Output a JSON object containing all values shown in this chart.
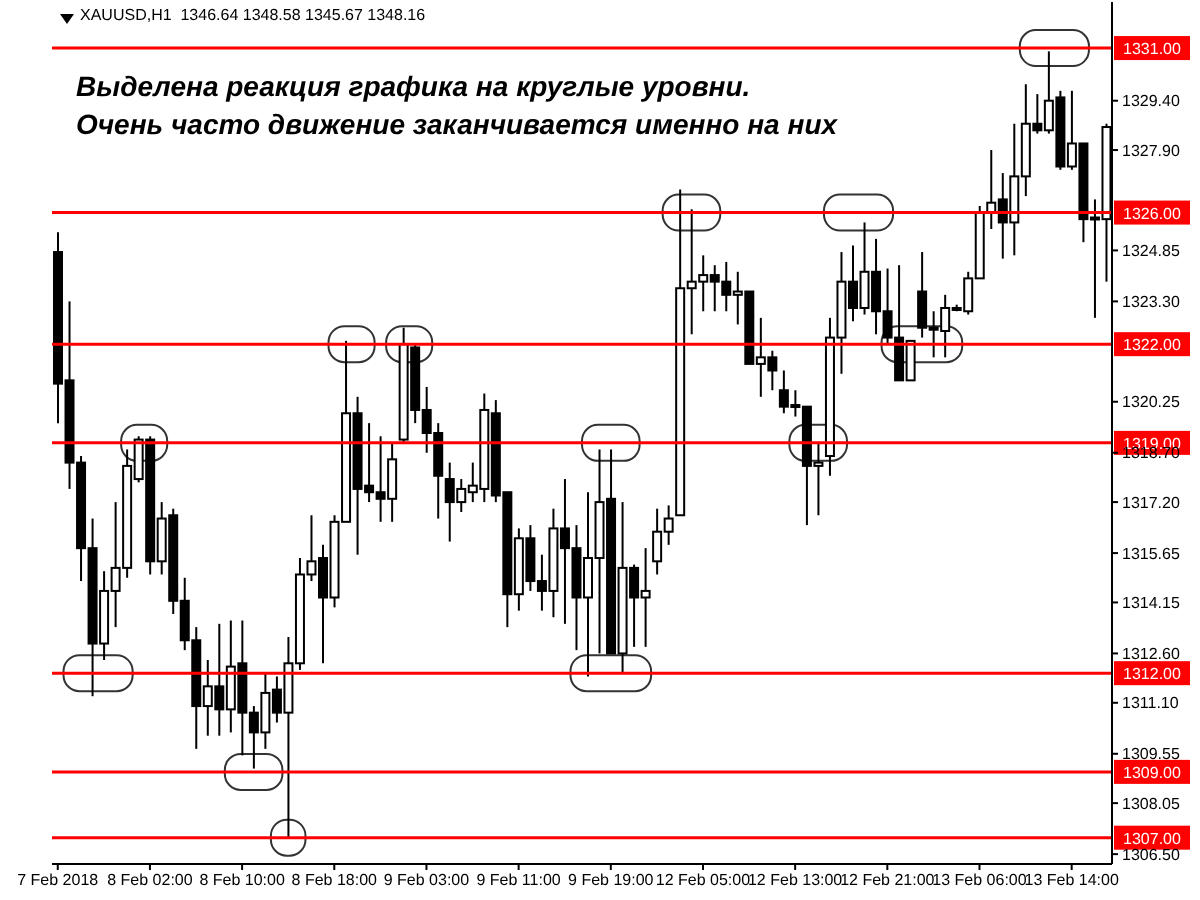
{
  "chart_data": {
    "type": "candlestick",
    "title": "XAUUSD,H1  1346.64 1348.58 1345.67 1348.16",
    "annotations": [
      "Выделена реакция графика на круглые уровни.",
      "Очень часто движение заканчивается именно на них"
    ],
    "categories": [
      "7 Feb 2018",
      null,
      null,
      null,
      null,
      null,
      null,
      null,
      "8 Feb 02:00",
      null,
      null,
      null,
      null,
      null,
      null,
      null,
      "8 Feb 10:00",
      null,
      null,
      null,
      null,
      null,
      null,
      null,
      "8 Feb 18:00",
      null,
      null,
      null,
      null,
      null,
      null,
      null,
      "9 Feb 03:00",
      null,
      null,
      null,
      null,
      null,
      null,
      null,
      "9 Feb 11:00",
      null,
      null,
      null,
      null,
      null,
      null,
      null,
      "9 Feb 19:00",
      null,
      null,
      null,
      null,
      null,
      null,
      null,
      "12 Feb 05:00",
      null,
      null,
      null,
      null,
      null,
      null,
      null,
      "12 Feb 13:00",
      null,
      null,
      null,
      null,
      null,
      null,
      null,
      "12 Feb 21:00",
      null,
      null,
      null,
      null,
      null,
      null,
      null,
      "13 Feb 06:00",
      null,
      null,
      null,
      null,
      null,
      null,
      null,
      "13 Feb 14:00",
      null,
      null,
      null
    ],
    "ohlc": [
      [
        1324.8,
        1325.4,
        1319.6,
        1320.8
      ],
      [
        1320.9,
        1323.3,
        1317.6,
        1318.4
      ],
      [
        1318.4,
        1318.6,
        1314.8,
        1315.8
      ],
      [
        1315.8,
        1316.7,
        1311.3,
        1312.9
      ],
      [
        1312.9,
        1315.1,
        1312.4,
        1314.5
      ],
      [
        1314.5,
        1317.2,
        1313.4,
        1315.2
      ],
      [
        1315.2,
        1318.8,
        1314.9,
        1318.3
      ],
      [
        1317.9,
        1319.2,
        1317.8,
        1319.1
      ],
      [
        1319.1,
        1319.2,
        1315.0,
        1315.4
      ],
      [
        1315.4,
        1317.2,
        1315.0,
        1316.7
      ],
      [
        1316.8,
        1317.0,
        1313.8,
        1314.2
      ],
      [
        1314.2,
        1314.9,
        1312.7,
        1313.0
      ],
      [
        1313.0,
        1313.4,
        1309.7,
        1311.0
      ],
      [
        1311.0,
        1312.4,
        1310.1,
        1311.6
      ],
      [
        1311.6,
        1313.5,
        1310.1,
        1310.9
      ],
      [
        1310.9,
        1313.6,
        1310.2,
        1312.2
      ],
      [
        1312.3,
        1313.6,
        1309.5,
        1310.8
      ],
      [
        1310.8,
        1311.0,
        1309.1,
        1310.2
      ],
      [
        1310.2,
        1312.0,
        1309.7,
        1311.4
      ],
      [
        1311.5,
        1311.9,
        1310.5,
        1310.8
      ],
      [
        1310.8,
        1313.1,
        1307.0,
        1312.3
      ],
      [
        1312.3,
        1315.5,
        1312.1,
        1315.0
      ],
      [
        1315.0,
        1316.8,
        1314.8,
        1315.4
      ],
      [
        1315.5,
        1315.9,
        1312.3,
        1314.3
      ],
      [
        1314.3,
        1316.8,
        1314.0,
        1316.6
      ],
      [
        1316.6,
        1322.1,
        1316.6,
        1319.9
      ],
      [
        1319.9,
        1320.4,
        1315.6,
        1317.6
      ],
      [
        1317.7,
        1319.6,
        1317.2,
        1317.5
      ],
      [
        1317.5,
        1319.2,
        1316.6,
        1317.3
      ],
      [
        1317.3,
        1319.0,
        1316.6,
        1318.5
      ],
      [
        1319.1,
        1322.5,
        1319.0,
        1322.0
      ],
      [
        1321.9,
        1322.0,
        1319.6,
        1320.0
      ],
      [
        1320.0,
        1320.7,
        1318.7,
        1319.3
      ],
      [
        1319.3,
        1319.6,
        1316.7,
        1318.0
      ],
      [
        1317.9,
        1318.4,
        1316.0,
        1317.2
      ],
      [
        1317.2,
        1317.9,
        1316.9,
        1317.6
      ],
      [
        1317.5,
        1318.4,
        1317.2,
        1317.7
      ],
      [
        1317.6,
        1320.5,
        1317.2,
        1320.0
      ],
      [
        1319.9,
        1320.3,
        1317.2,
        1317.4
      ],
      [
        1317.5,
        1317.5,
        1313.4,
        1314.4
      ],
      [
        1314.4,
        1316.4,
        1313.9,
        1316.1
      ],
      [
        1316.1,
        1316.5,
        1314.5,
        1314.8
      ],
      [
        1314.8,
        1315.6,
        1313.9,
        1314.5
      ],
      [
        1314.5,
        1317.0,
        1313.7,
        1316.4
      ],
      [
        1316.4,
        1317.9,
        1313.5,
        1315.8
      ],
      [
        1315.8,
        1316.5,
        1312.7,
        1314.3
      ],
      [
        1314.3,
        1317.5,
        1311.9,
        1315.5
      ],
      [
        1315.5,
        1318.8,
        1312.6,
        1317.2
      ],
      [
        1317.3,
        1318.8,
        1312.6,
        1312.6
      ],
      [
        1312.6,
        1317.2,
        1312.0,
        1315.2
      ],
      [
        1315.2,
        1315.3,
        1312.8,
        1314.3
      ],
      [
        1314.3,
        1315.8,
        1312.8,
        1314.5
      ],
      [
        1315.4,
        1317.0,
        1315.0,
        1316.3
      ],
      [
        1316.3,
        1317.1,
        1315.9,
        1316.7
      ],
      [
        1316.8,
        1326.7,
        1316.8,
        1323.7
      ],
      [
        1323.7,
        1326.1,
        1322.3,
        1323.9
      ],
      [
        1323.9,
        1324.7,
        1323.0,
        1324.1
      ],
      [
        1324.1,
        1324.4,
        1323.0,
        1323.9
      ],
      [
        1323.9,
        1324.5,
        1323.0,
        1323.5
      ],
      [
        1323.5,
        1324.2,
        1322.6,
        1323.6
      ],
      [
        1323.6,
        1323.6,
        1321.4,
        1321.4
      ],
      [
        1321.4,
        1322.8,
        1320.4,
        1321.6
      ],
      [
        1321.6,
        1321.8,
        1320.6,
        1321.2
      ],
      [
        1320.6,
        1321.2,
        1319.9,
        1320.1
      ],
      [
        1320.15,
        1320.6,
        1319.8,
        1320.1
      ],
      [
        1320.1,
        1320.1,
        1316.5,
        1318.3
      ],
      [
        1318.3,
        1319.0,
        1316.8,
        1318.4
      ],
      [
        1318.6,
        1322.8,
        1318.0,
        1322.2
      ],
      [
        1322.2,
        1324.8,
        1321.1,
        1323.9
      ],
      [
        1323.9,
        1325.0,
        1322.7,
        1323.1
      ],
      [
        1323.1,
        1325.7,
        1322.9,
        1324.2
      ],
      [
        1324.2,
        1325.2,
        1322.3,
        1323.0
      ],
      [
        1323.0,
        1324.3,
        1322.0,
        1322.2
      ],
      [
        1322.2,
        1324.4,
        1320.9,
        1320.9
      ],
      [
        1320.9,
        1322.1,
        1320.9,
        1322.1
      ],
      [
        1323.6,
        1324.8,
        1322.2,
        1322.5
      ],
      [
        1322.45,
        1323.0,
        1321.6,
        1322.5
      ],
      [
        1322.4,
        1323.5,
        1321.6,
        1323.1
      ],
      [
        1323.05,
        1323.2,
        1323.0,
        1323.1
      ],
      [
        1323.0,
        1324.2,
        1322.9,
        1324.0
      ],
      [
        1324.0,
        1326.2,
        1324.0,
        1326.0
      ],
      [
        1326.0,
        1327.9,
        1325.5,
        1326.3
      ],
      [
        1326.4,
        1327.2,
        1324.6,
        1325.7
      ],
      [
        1325.7,
        1328.7,
        1324.7,
        1327.1
      ],
      [
        1327.1,
        1329.9,
        1326.5,
        1328.7
      ],
      [
        1328.7,
        1329.6,
        1328.4,
        1328.5
      ],
      [
        1328.5,
        1330.9,
        1328.4,
        1329.4
      ],
      [
        1329.5,
        1329.7,
        1327.3,
        1327.4
      ],
      [
        1327.4,
        1329.7,
        1327.3,
        1328.1
      ],
      [
        1328.1,
        1328.1,
        1325.1,
        1325.8
      ],
      [
        1325.85,
        1326.4,
        1322.8,
        1325.8
      ],
      [
        1325.8,
        1328.7,
        1323.9,
        1328.6
      ]
    ],
    "ylim": [
      1306.2,
      1332.4
    ],
    "yticks": [
      {
        "value": 1306.5,
        "label": "1306.50"
      },
      1308.05,
      1309.55,
      {
        "value": 1311.1,
        "label": "1311.10"
      },
      {
        "value": 1312.6,
        "label": "1312.60"
      },
      1314.15,
      1315.65,
      {
        "value": 1317.2,
        "label": "1317.20"
      },
      {
        "value": 1318.7,
        "label": "1318.70"
      },
      1320.25,
      {
        "value": 1323.3,
        "label": "1323.30"
      },
      1324.85,
      {
        "value": 1327.9,
        "label": "1327.90"
      },
      {
        "value": 1329.4,
        "label": "1329.40"
      }
    ],
    "ref_lines": [
      {
        "axis": "y",
        "value": 1331,
        "label": "1331.00",
        "color": "#ff0000"
      },
      {
        "axis": "y",
        "value": 1326,
        "label": "1326.00",
        "color": "#ff0000"
      },
      {
        "axis": "y",
        "value": 1322,
        "label": "1322.00",
        "color": "#ff0000"
      },
      {
        "axis": "y",
        "value": 1319,
        "label": "1319.00",
        "color": "#ff0000"
      },
      {
        "axis": "y",
        "value": 1312,
        "label": "1312.00",
        "color": "#ff0000"
      },
      {
        "axis": "y",
        "value": 1309,
        "label": "1309.00",
        "color": "#ff0000"
      },
      {
        "axis": "y",
        "value": 1307,
        "label": "1307.00",
        "color": "#ff0000"
      }
    ]
  }
}
